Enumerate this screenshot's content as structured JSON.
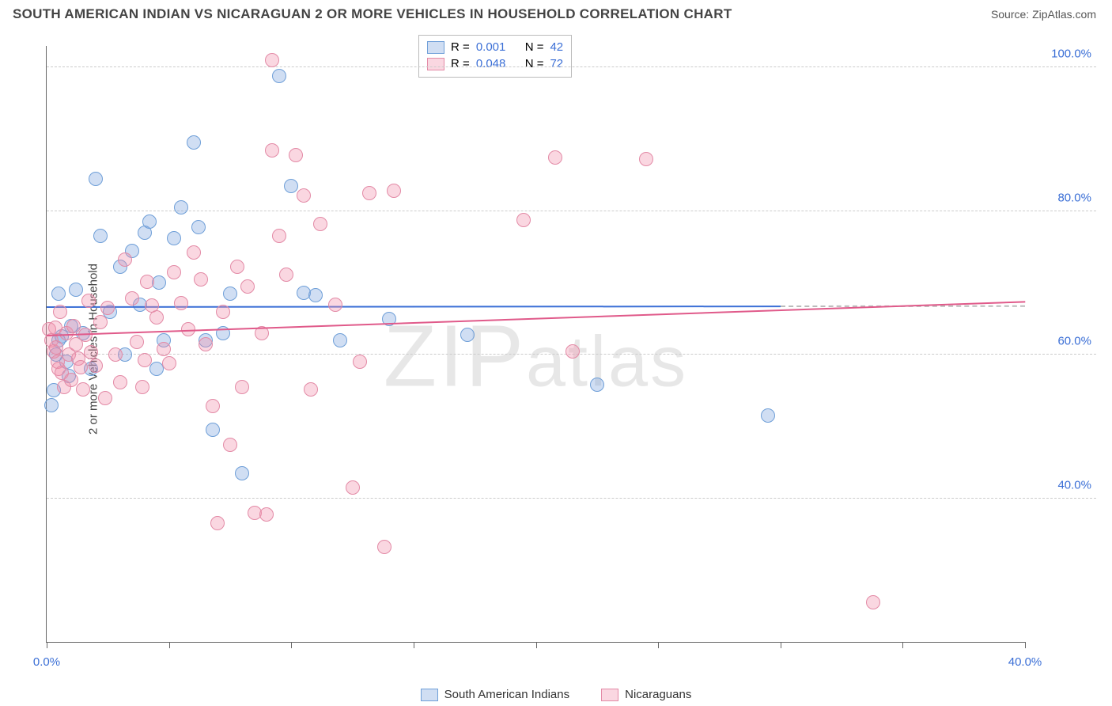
{
  "title": "SOUTH AMERICAN INDIAN VS NICARAGUAN 2 OR MORE VEHICLES IN HOUSEHOLD CORRELATION CHART",
  "source_label": "Source: ",
  "source_name": "ZipAtlas.com",
  "ylabel": "2 or more Vehicles in Household",
  "watermark": "ZIPatlas",
  "chart": {
    "type": "scatter",
    "xlim": [
      0,
      40
    ],
    "ylim": [
      20,
      103
    ],
    "xtick_positions": [
      0,
      5,
      10,
      15,
      20,
      25,
      30,
      35,
      40
    ],
    "xtick_labels": {
      "0": "0.0%",
      "40": "40.0%"
    },
    "ytick_positions": [
      40,
      60,
      80,
      100
    ],
    "ytick_labels": [
      "40.0%",
      "60.0%",
      "80.0%",
      "100.0%"
    ],
    "tick_label_color": "#3b6fd6",
    "grid_color": "#cccccc",
    "background_color": "#ffffff",
    "point_radius": 9,
    "series": [
      {
        "key": "sai",
        "label": "South American Indians",
        "fill": "rgba(120,160,220,0.35)",
        "stroke": "#6f9fd8",
        "trend_color": "#3b6fd6",
        "R": "0.001",
        "N": "42",
        "trend": {
          "x1": 0,
          "y1": 66.5,
          "x2": 30,
          "y2": 66.6,
          "dash_to_x": 40
        },
        "points": [
          [
            0.2,
            53
          ],
          [
            0.3,
            55
          ],
          [
            0.4,
            60
          ],
          [
            0.5,
            62
          ],
          [
            0.6,
            62.5
          ],
          [
            0.8,
            59
          ],
          [
            0.5,
            68.5
          ],
          [
            1.2,
            69
          ],
          [
            1.0,
            64
          ],
          [
            1.5,
            63
          ],
          [
            2.0,
            84.5
          ],
          [
            2.2,
            76.5
          ],
          [
            3.0,
            72.3
          ],
          [
            3.2,
            60
          ],
          [
            3.5,
            74.5
          ],
          [
            4.0,
            77
          ],
          [
            4.2,
            78.5
          ],
          [
            4.5,
            58
          ],
          [
            4.8,
            62
          ],
          [
            5.5,
            80.5
          ],
          [
            6.0,
            89.5
          ],
          [
            6.2,
            77.8
          ],
          [
            6.5,
            62
          ],
          [
            6.8,
            49.5
          ],
          [
            7.2,
            63
          ],
          [
            7.5,
            68.5
          ],
          [
            8.0,
            43.5
          ],
          [
            9.5,
            98.8
          ],
          [
            10.0,
            83.5
          ],
          [
            10.5,
            68.6
          ],
          [
            11.0,
            68.3
          ],
          [
            12.0,
            62
          ],
          [
            14.0,
            65
          ],
          [
            17.2,
            62.8
          ],
          [
            22.5,
            55.8
          ],
          [
            29.5,
            51.5
          ],
          [
            3.8,
            67
          ],
          [
            4.6,
            70
          ],
          [
            2.6,
            66
          ],
          [
            1.8,
            58
          ],
          [
            0.9,
            57
          ],
          [
            5.2,
            76.2
          ]
        ]
      },
      {
        "key": "nic",
        "label": "Nicaguans",
        "label_display": "Nicaraguans",
        "fill": "rgba(240,140,170,0.35)",
        "stroke": "#e38aa6",
        "trend_color": "#e05a8a",
        "R": "0.048",
        "N": "72",
        "trend": {
          "x1": 0,
          "y1": 62.5,
          "x2": 40,
          "y2": 67.2
        },
        "points": [
          [
            0.1,
            63.5
          ],
          [
            0.2,
            62
          ],
          [
            0.3,
            60.5
          ],
          [
            0.35,
            63.8
          ],
          [
            0.4,
            61
          ],
          [
            0.45,
            59
          ],
          [
            0.5,
            58
          ],
          [
            0.6,
            57.5
          ],
          [
            0.7,
            55.5
          ],
          [
            0.8,
            63
          ],
          [
            0.9,
            60
          ],
          [
            1.0,
            56.5
          ],
          [
            1.1,
            64
          ],
          [
            1.2,
            61.5
          ],
          [
            1.3,
            59.5
          ],
          [
            1.4,
            58.2
          ],
          [
            1.5,
            55.2
          ],
          [
            1.6,
            62.8
          ],
          [
            1.8,
            60.3
          ],
          [
            2.0,
            58.5
          ],
          [
            2.2,
            64.5
          ],
          [
            2.5,
            66.5
          ],
          [
            2.8,
            60
          ],
          [
            3.0,
            56.2
          ],
          [
            3.2,
            73.2
          ],
          [
            3.5,
            67.8
          ],
          [
            3.7,
            61.8
          ],
          [
            3.9,
            55.5
          ],
          [
            4.1,
            70.2
          ],
          [
            4.3,
            66.8
          ],
          [
            4.5,
            65.2
          ],
          [
            4.8,
            60.8
          ],
          [
            5.0,
            58.8
          ],
          [
            5.2,
            71.5
          ],
          [
            5.5,
            67.2
          ],
          [
            5.8,
            63.5
          ],
          [
            6.0,
            74.2
          ],
          [
            6.3,
            70.5
          ],
          [
            6.5,
            61.5
          ],
          [
            6.8,
            52.8
          ],
          [
            7.0,
            36.5
          ],
          [
            7.2,
            66
          ],
          [
            7.5,
            47.5
          ],
          [
            7.8,
            72.2
          ],
          [
            8.0,
            55.5
          ],
          [
            8.2,
            69.5
          ],
          [
            8.5,
            38
          ],
          [
            8.8,
            63
          ],
          [
            9.0,
            37.8
          ],
          [
            9.2,
            88.5
          ],
          [
            9.5,
            76.5
          ],
          [
            9.8,
            71.2
          ],
          [
            10.2,
            87.8
          ],
          [
            10.5,
            82.2
          ],
          [
            10.8,
            55.2
          ],
          [
            11.2,
            78.2
          ],
          [
            11.8,
            67
          ],
          [
            12.5,
            41.5
          ],
          [
            12.8,
            59
          ],
          [
            13.2,
            82.5
          ],
          [
            13.8,
            33.2
          ],
          [
            14.2,
            82.8
          ],
          [
            19.5,
            78.8
          ],
          [
            20.8,
            87.5
          ],
          [
            21.5,
            60.5
          ],
          [
            24.5,
            87.2
          ],
          [
            33.8,
            25.5
          ],
          [
            9.2,
            101
          ],
          [
            2.4,
            54
          ],
          [
            1.7,
            67.5
          ],
          [
            0.55,
            66
          ],
          [
            4.0,
            59.2
          ]
        ]
      }
    ]
  },
  "legend_top": {
    "R_label": "R =",
    "N_label": "N =",
    "value_color": "#3b6fd6"
  },
  "legend_bottom_labels": [
    "South American Indians",
    "Nicaraguans"
  ]
}
